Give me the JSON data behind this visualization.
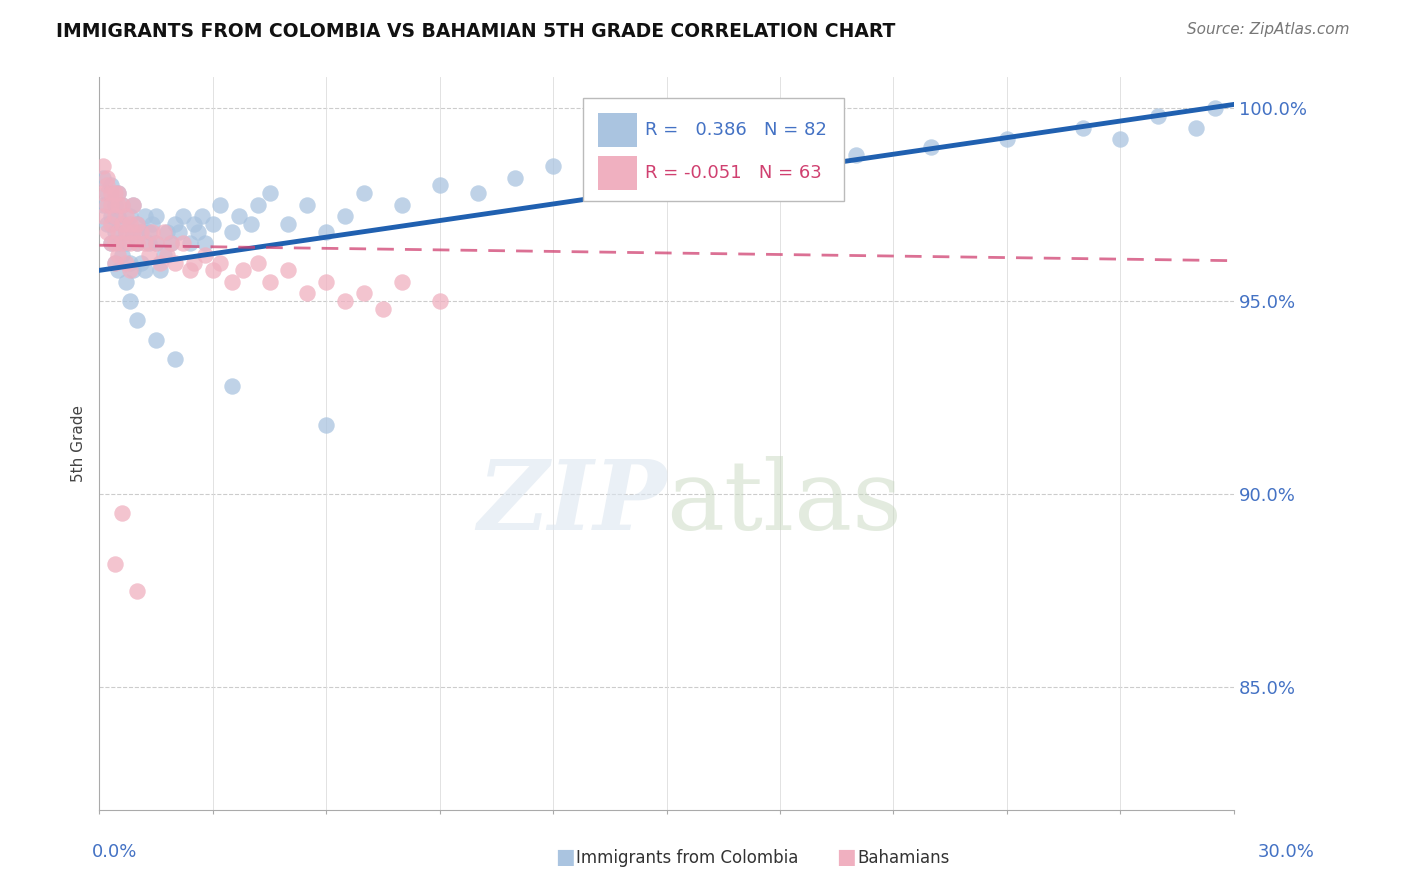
{
  "title": "IMMIGRANTS FROM COLOMBIA VS BAHAMIAN 5TH GRADE CORRELATION CHART",
  "source": "Source: ZipAtlas.com",
  "xlim": [
    0.0,
    0.3
  ],
  "ylim": [
    0.818,
    1.008
  ],
  "yticks": [
    0.85,
    0.9,
    0.95,
    1.0
  ],
  "ytick_labels": [
    "85.0%",
    "90.0%",
    "95.0%",
    "100.0%"
  ],
  "legend_R_blue": "0.386",
  "legend_N_blue": "82",
  "legend_R_pink": "-0.051",
  "legend_N_pink": "63",
  "blue_dot_color": "#aac4e0",
  "blue_line_color": "#2060b0",
  "pink_dot_color": "#f0b0c0",
  "pink_line_color": "#d04070",
  "ylabel_label": "5th Grade",
  "blue_line_x": [
    0.0,
    0.3
  ],
  "blue_line_y": [
    0.958,
    1.001
  ],
  "pink_line_x": [
    0.0,
    0.3
  ],
  "pink_line_y": [
    0.9645,
    0.9605
  ],
  "blue_scatter_x": [
    0.001,
    0.001,
    0.002,
    0.002,
    0.003,
    0.003,
    0.003,
    0.004,
    0.004,
    0.004,
    0.005,
    0.005,
    0.005,
    0.005,
    0.006,
    0.006,
    0.006,
    0.007,
    0.007,
    0.007,
    0.008,
    0.008,
    0.009,
    0.009,
    0.009,
    0.01,
    0.01,
    0.011,
    0.011,
    0.012,
    0.012,
    0.013,
    0.013,
    0.014,
    0.015,
    0.015,
    0.016,
    0.017,
    0.018,
    0.019,
    0.02,
    0.021,
    0.022,
    0.024,
    0.025,
    0.026,
    0.027,
    0.028,
    0.03,
    0.032,
    0.035,
    0.037,
    0.04,
    0.042,
    0.045,
    0.05,
    0.055,
    0.06,
    0.065,
    0.07,
    0.08,
    0.09,
    0.1,
    0.11,
    0.12,
    0.14,
    0.16,
    0.18,
    0.2,
    0.22,
    0.24,
    0.26,
    0.27,
    0.28,
    0.29,
    0.295,
    0.008,
    0.01,
    0.015,
    0.02,
    0.035,
    0.06
  ],
  "blue_scatter_y": [
    0.975,
    0.982,
    0.978,
    0.97,
    0.972,
    0.98,
    0.965,
    0.975,
    0.968,
    0.96,
    0.978,
    0.965,
    0.972,
    0.958,
    0.97,
    0.962,
    0.975,
    0.968,
    0.955,
    0.965,
    0.972,
    0.96,
    0.968,
    0.958,
    0.975,
    0.965,
    0.97,
    0.96,
    0.968,
    0.972,
    0.958,
    0.965,
    0.968,
    0.97,
    0.965,
    0.972,
    0.958,
    0.962,
    0.968,
    0.965,
    0.97,
    0.968,
    0.972,
    0.965,
    0.97,
    0.968,
    0.972,
    0.965,
    0.97,
    0.975,
    0.968,
    0.972,
    0.97,
    0.975,
    0.978,
    0.97,
    0.975,
    0.968,
    0.972,
    0.978,
    0.975,
    0.98,
    0.978,
    0.982,
    0.985,
    0.98,
    0.982,
    0.985,
    0.988,
    0.99,
    0.992,
    0.995,
    0.992,
    0.998,
    0.995,
    1.0,
    0.95,
    0.945,
    0.94,
    0.935,
    0.928,
    0.918
  ],
  "pink_scatter_x": [
    0.001,
    0.001,
    0.001,
    0.002,
    0.002,
    0.002,
    0.002,
    0.003,
    0.003,
    0.003,
    0.003,
    0.004,
    0.004,
    0.004,
    0.004,
    0.005,
    0.005,
    0.005,
    0.005,
    0.006,
    0.006,
    0.006,
    0.007,
    0.007,
    0.007,
    0.008,
    0.008,
    0.008,
    0.009,
    0.009,
    0.01,
    0.01,
    0.011,
    0.012,
    0.013,
    0.014,
    0.015,
    0.016,
    0.017,
    0.018,
    0.019,
    0.02,
    0.022,
    0.024,
    0.025,
    0.028,
    0.03,
    0.032,
    0.035,
    0.038,
    0.042,
    0.045,
    0.05,
    0.055,
    0.06,
    0.065,
    0.07,
    0.075,
    0.08,
    0.09,
    0.004,
    0.006,
    0.01
  ],
  "pink_scatter_y": [
    0.985,
    0.978,
    0.972,
    0.982,
    0.975,
    0.968,
    0.98,
    0.978,
    0.97,
    0.965,
    0.975,
    0.972,
    0.965,
    0.978,
    0.96,
    0.975,
    0.968,
    0.962,
    0.978,
    0.97,
    0.965,
    0.975,
    0.968,
    0.96,
    0.972,
    0.965,
    0.97,
    0.958,
    0.968,
    0.975,
    0.965,
    0.97,
    0.968,
    0.965,
    0.962,
    0.968,
    0.965,
    0.96,
    0.968,
    0.962,
    0.965,
    0.96,
    0.965,
    0.958,
    0.96,
    0.962,
    0.958,
    0.96,
    0.955,
    0.958,
    0.96,
    0.955,
    0.958,
    0.952,
    0.955,
    0.95,
    0.952,
    0.948,
    0.955,
    0.95,
    0.882,
    0.895,
    0.875
  ]
}
